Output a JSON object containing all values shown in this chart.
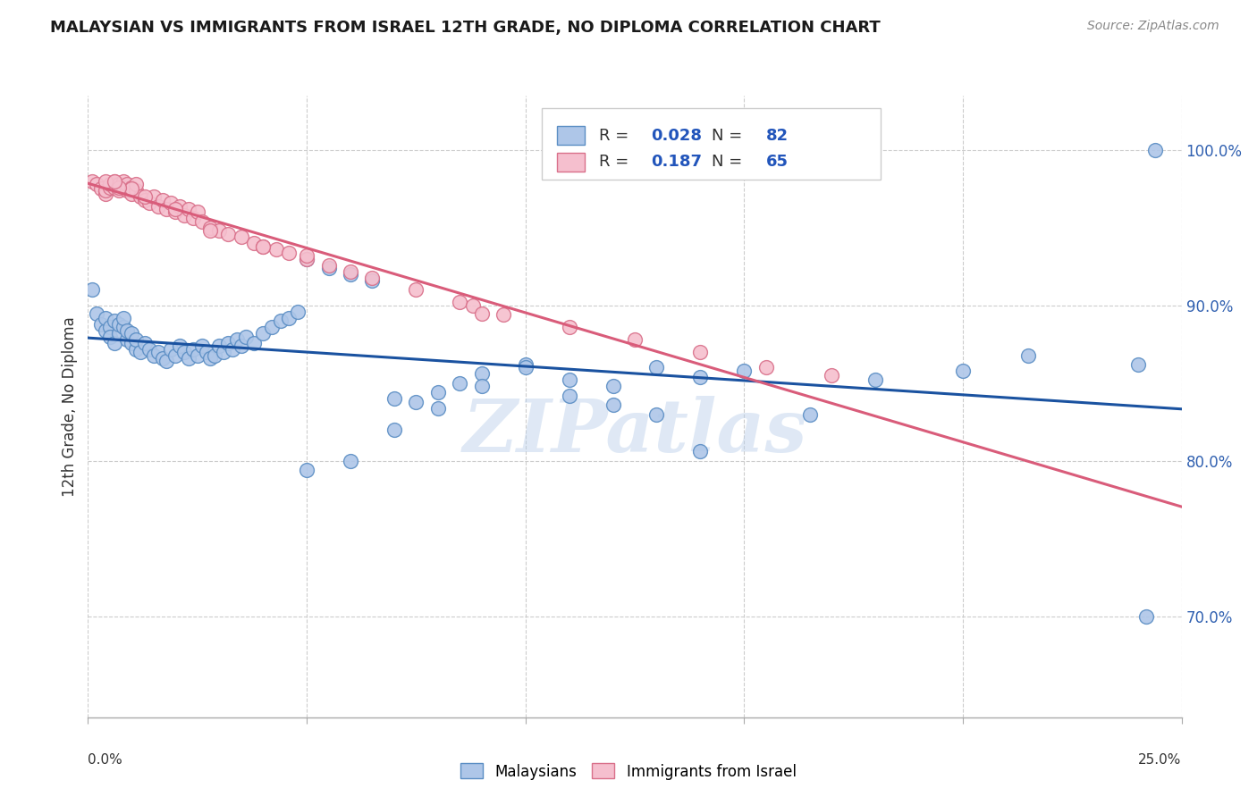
{
  "title": "MALAYSIAN VS IMMIGRANTS FROM ISRAEL 12TH GRADE, NO DIPLOMA CORRELATION CHART",
  "source": "Source: ZipAtlas.com",
  "ylabel": "12th Grade, No Diploma",
  "ytick_labels": [
    "70.0%",
    "80.0%",
    "90.0%",
    "100.0%"
  ],
  "ytick_values": [
    0.7,
    0.8,
    0.9,
    1.0
  ],
  "xlim": [
    0.0,
    0.25
  ],
  "ylim": [
    0.635,
    1.035
  ],
  "legend_blue_r": "0.028",
  "legend_blue_n": "82",
  "legend_pink_r": "0.187",
  "legend_pink_n": "65",
  "blue_color": "#aec6e8",
  "blue_edge": "#5b8ec4",
  "pink_color": "#f5bfce",
  "pink_edge": "#d9708a",
  "blue_line_color": "#1a52a0",
  "pink_line_color": "#d95c7a",
  "watermark": "ZIPatlas",
  "blue_scatter_x": [
    0.001,
    0.002,
    0.003,
    0.004,
    0.004,
    0.005,
    0.005,
    0.006,
    0.006,
    0.007,
    0.007,
    0.008,
    0.008,
    0.009,
    0.009,
    0.01,
    0.01,
    0.011,
    0.011,
    0.012,
    0.013,
    0.014,
    0.015,
    0.016,
    0.017,
    0.018,
    0.019,
    0.02,
    0.021,
    0.022,
    0.023,
    0.024,
    0.025,
    0.026,
    0.027,
    0.028,
    0.029,
    0.03,
    0.031,
    0.032,
    0.033,
    0.034,
    0.035,
    0.036,
    0.038,
    0.04,
    0.042,
    0.044,
    0.046,
    0.048,
    0.05,
    0.055,
    0.06,
    0.065,
    0.07,
    0.075,
    0.08,
    0.085,
    0.09,
    0.1,
    0.11,
    0.12,
    0.13,
    0.14,
    0.15,
    0.165,
    0.18,
    0.2,
    0.215,
    0.24,
    0.242,
    0.244,
    0.05,
    0.06,
    0.07,
    0.08,
    0.09,
    0.1,
    0.11,
    0.12,
    0.13,
    0.14
  ],
  "blue_scatter_y": [
    0.91,
    0.895,
    0.888,
    0.884,
    0.892,
    0.886,
    0.88,
    0.89,
    0.876,
    0.882,
    0.888,
    0.886,
    0.892,
    0.878,
    0.884,
    0.876,
    0.882,
    0.872,
    0.878,
    0.87,
    0.876,
    0.872,
    0.868,
    0.87,
    0.866,
    0.864,
    0.872,
    0.868,
    0.874,
    0.87,
    0.866,
    0.872,
    0.868,
    0.874,
    0.87,
    0.866,
    0.868,
    0.874,
    0.87,
    0.876,
    0.872,
    0.878,
    0.874,
    0.88,
    0.876,
    0.882,
    0.886,
    0.89,
    0.892,
    0.896,
    0.93,
    0.924,
    0.92,
    0.916,
    0.84,
    0.838,
    0.844,
    0.85,
    0.856,
    0.862,
    0.852,
    0.848,
    0.86,
    0.854,
    0.858,
    0.83,
    0.852,
    0.858,
    0.868,
    0.862,
    0.7,
    1.0,
    0.794,
    0.8,
    0.82,
    0.834,
    0.848,
    0.86,
    0.842,
    0.836,
    0.83,
    0.806
  ],
  "pink_scatter_x": [
    0.001,
    0.002,
    0.003,
    0.004,
    0.004,
    0.005,
    0.005,
    0.006,
    0.006,
    0.007,
    0.007,
    0.008,
    0.008,
    0.009,
    0.009,
    0.01,
    0.01,
    0.011,
    0.011,
    0.012,
    0.013,
    0.014,
    0.015,
    0.016,
    0.017,
    0.018,
    0.019,
    0.02,
    0.021,
    0.022,
    0.023,
    0.024,
    0.025,
    0.026,
    0.028,
    0.03,
    0.032,
    0.035,
    0.038,
    0.04,
    0.043,
    0.046,
    0.05,
    0.055,
    0.06,
    0.065,
    0.075,
    0.085,
    0.095,
    0.11,
    0.125,
    0.14,
    0.155,
    0.004,
    0.088,
    0.17,
    0.05,
    0.09,
    0.013,
    0.028,
    0.04,
    0.01,
    0.02,
    0.007,
    0.006
  ],
  "pink_scatter_y": [
    0.98,
    0.978,
    0.975,
    0.972,
    0.974,
    0.976,
    0.978,
    0.98,
    0.976,
    0.974,
    0.978,
    0.98,
    0.976,
    0.974,
    0.978,
    0.972,
    0.976,
    0.974,
    0.978,
    0.97,
    0.968,
    0.966,
    0.97,
    0.964,
    0.968,
    0.962,
    0.966,
    0.96,
    0.964,
    0.958,
    0.962,
    0.956,
    0.96,
    0.954,
    0.95,
    0.948,
    0.946,
    0.944,
    0.94,
    0.938,
    0.936,
    0.934,
    0.93,
    0.926,
    0.922,
    0.918,
    0.91,
    0.902,
    0.894,
    0.886,
    0.878,
    0.87,
    0.86,
    0.98,
    0.9,
    0.855,
    0.932,
    0.895,
    0.97,
    0.948,
    0.938,
    0.975,
    0.962,
    0.976,
    0.98
  ]
}
